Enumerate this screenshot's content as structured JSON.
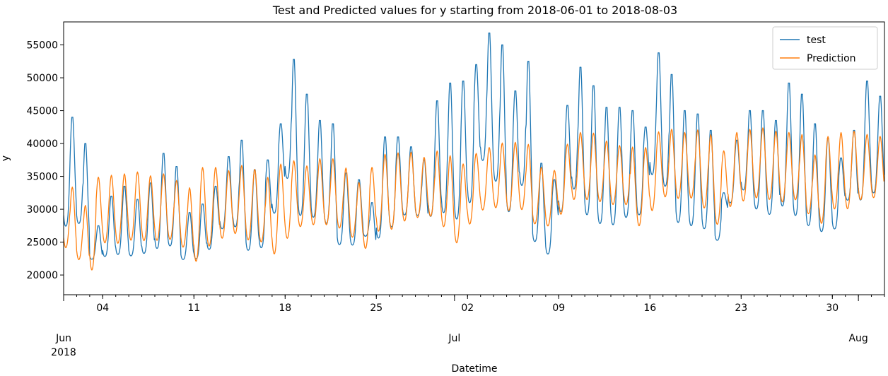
{
  "chart_data": {
    "type": "line",
    "title": "Test and Predicted values for y starting from 2018-06-01 to 2018-08-03",
    "xlabel": "Datetime",
    "ylabel": "y",
    "x_range": [
      "2018-06-01",
      "2018-08-03"
    ],
    "ylim": [
      17000,
      58500
    ],
    "y_ticks": [
      20000,
      25000,
      30000,
      35000,
      40000,
      45000,
      50000,
      55000
    ],
    "x_ticks": [
      {
        "date": "2018-06-04",
        "label": "04"
      },
      {
        "date": "2018-06-11",
        "label": "11"
      },
      {
        "date": "2018-06-18",
        "label": "18"
      },
      {
        "date": "2018-06-25",
        "label": "25"
      },
      {
        "date": "2018-07-02",
        "label": "02"
      },
      {
        "date": "2018-07-09",
        "label": "09"
      },
      {
        "date": "2018-07-16",
        "label": "16"
      },
      {
        "date": "2018-07-23",
        "label": "23"
      },
      {
        "date": "2018-07-30",
        "label": "30"
      }
    ],
    "x_major_labels": [
      {
        "date": "2018-06-01",
        "label": "Jun",
        "sub": "2018"
      },
      {
        "date": "2018-07-01",
        "label": "Jul",
        "sub": ""
      },
      {
        "date": "2018-08-01",
        "label": "Aug",
        "sub": ""
      }
    ],
    "legend_position": "top-right",
    "grid": false,
    "series": [
      {
        "name": "test",
        "color": "#1f77b4",
        "sampling": "hourly",
        "daily_peaks": [
          44000,
          40000,
          27500,
          32000,
          33500,
          31500,
          34000,
          38500,
          36500,
          29500,
          30800,
          33500,
          38000,
          40500,
          36000,
          37500,
          43000,
          52800,
          47500,
          43500,
          43000,
          35500,
          34500,
          31000,
          41000,
          41000,
          39500,
          37500,
          46500,
          49200,
          49500,
          52000,
          56800,
          55000,
          48000,
          52500,
          37000,
          34500,
          45800,
          51600,
          48800,
          45500,
          45500,
          45000,
          42500,
          53800,
          50500,
          45000,
          44500,
          42000,
          32500,
          40500,
          45000,
          45000,
          43500,
          49200,
          47500,
          43000,
          40800,
          37800,
          42000,
          49500,
          47200
        ],
        "daily_troughs": [
          24500,
          25700,
          21500,
          21200,
          21300,
          21400,
          21400,
          21500,
          22300,
          21100,
          21000,
          22200,
          25100,
          25000,
          21600,
          21800,
          27000,
          31500,
          25800,
          26200,
          25200,
          22700,
          22800,
          25000,
          22900,
          24900,
          27300,
          27600,
          25800,
          26000,
          24800,
          27300,
          34000,
          30600,
          26400,
          30300,
          23000,
          21200,
          26800,
          29800,
          25700,
          24700,
          24500,
          25900,
          26800,
          32000,
          30500,
          25000,
          24500,
          24400,
          24000,
          29300,
          30800,
          27400,
          26700,
          27200,
          25800,
          24800,
          24100,
          25100,
          29500,
          28200,
          29900
        ]
      },
      {
        "name": "Prediction",
        "color": "#ff7f0e",
        "sampling": "hourly",
        "daily_peaks": [
          33500,
          30700,
          35000,
          35300,
          35500,
          35800,
          35200,
          35500,
          34500,
          33400,
          36500,
          36500,
          36000,
          36800,
          36200,
          35000,
          37000,
          37500,
          36700,
          37800,
          37800,
          36400,
          34200,
          36500,
          38500,
          38700,
          38800,
          38000,
          39000,
          38300,
          37000,
          38600,
          39500,
          40200,
          40300,
          40000,
          36500,
          36000,
          40000,
          41800,
          41700,
          40500,
          39800,
          39600,
          39500,
          41900,
          42300,
          41800,
          42200,
          41500,
          39000,
          41800,
          42300,
          42500,
          42000,
          41800,
          41500,
          38400,
          41200,
          41800,
          42000,
          41500,
          41200
        ],
        "daily_troughs": [
          23000,
          21300,
          19000,
          23600,
          23500,
          24000,
          24000,
          24000,
          24300,
          23100,
          20300,
          22900,
          24300,
          25000,
          24000,
          23800,
          21500,
          24100,
          26200,
          26400,
          26400,
          26000,
          24700,
          22500,
          25200,
          25500,
          26900,
          27600,
          27700,
          26000,
          23400,
          26400,
          28700,
          29000,
          28500,
          28700,
          26700,
          26400,
          27900,
          30200,
          30200,
          30000,
          29600,
          29600,
          26000,
          28300,
          30600,
          30400,
          30400,
          28800,
          26300,
          29000,
          29900,
          30400,
          30200,
          29800,
          30200,
          28200,
          26200,
          28600,
          28600,
          30200,
          30600
        ]
      }
    ]
  }
}
